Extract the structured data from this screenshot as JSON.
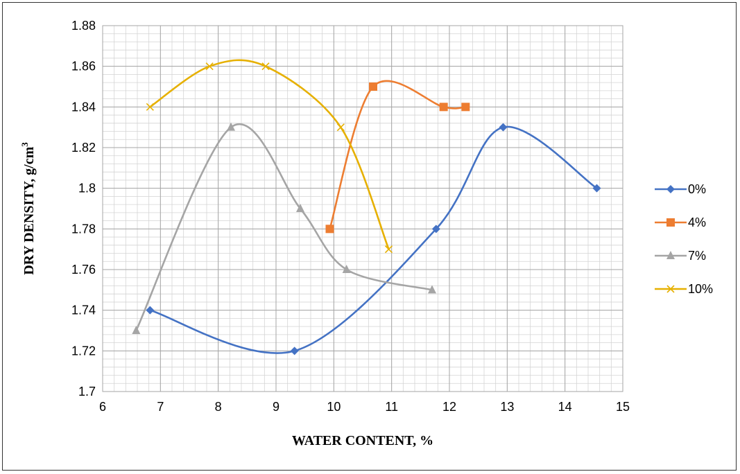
{
  "chart_data": {
    "type": "line",
    "xlabel": "WATER CONTENT, %",
    "ylabel": "DRY DENSITY, g/cm",
    "ylabel_sup": "3",
    "xlim": [
      6,
      15
    ],
    "ylim": [
      1.7,
      1.88
    ],
    "x_ticks": [
      "6",
      "7",
      "8",
      "9",
      "10",
      "11",
      "12",
      "13",
      "14",
      "15"
    ],
    "y_ticks": [
      "1.7",
      "1.72",
      "1.74",
      "1.76",
      "1.78",
      "1.8",
      "1.82",
      "1.84",
      "1.86",
      "1.88"
    ],
    "grid": true,
    "minor_grid": true,
    "legend_position": "right",
    "series": [
      {
        "name": "0%",
        "color": "#4472C4",
        "marker": "diamond",
        "x": [
          6.82,
          9.32,
          11.77,
          12.93,
          14.55
        ],
        "y": [
          1.74,
          1.72,
          1.78,
          1.83,
          1.8
        ]
      },
      {
        "name": "4%",
        "color": "#ED7D31",
        "marker": "square",
        "x": [
          9.93,
          10.68,
          11.9,
          12.28
        ],
        "y": [
          1.78,
          1.85,
          1.84,
          1.84
        ]
      },
      {
        "name": "7%",
        "color": "#A5A5A5",
        "marker": "triangle",
        "x": [
          6.58,
          8.22,
          9.42,
          10.22,
          11.7
        ],
        "y": [
          1.73,
          1.83,
          1.79,
          1.76,
          1.75
        ]
      },
      {
        "name": "10%",
        "color": "#E6B000",
        "marker": "x",
        "x": [
          6.82,
          7.85,
          8.82,
          10.12,
          10.95
        ],
        "y": [
          1.84,
          1.86,
          1.86,
          1.83,
          1.77
        ]
      }
    ]
  }
}
